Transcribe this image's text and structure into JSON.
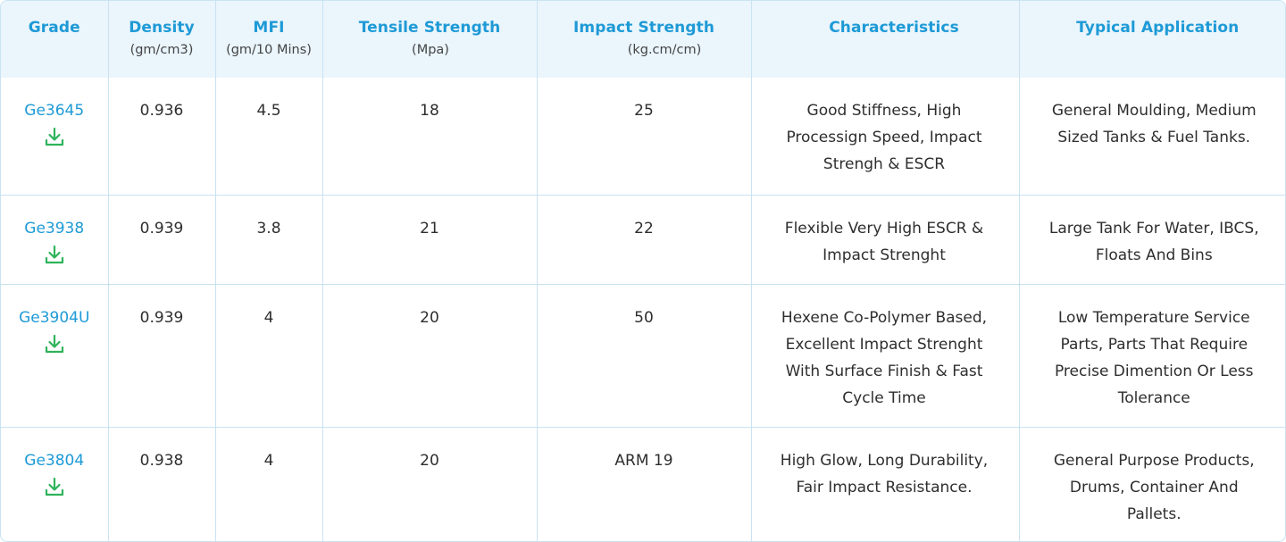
{
  "headers": [
    {
      "title": "Grade",
      "unit": ""
    },
    {
      "title": "Density",
      "unit": "(gm/cm3)"
    },
    {
      "title": "MFI",
      "unit": "(gm/10 Mins)"
    },
    {
      "title": "Tensile Strength",
      "unit": "(Mpa)"
    },
    {
      "title": "Impact Strength",
      "unit": "(kg.cm/cm)"
    },
    {
      "title": "Characteristics",
      "unit": ""
    },
    {
      "title": "Typical Application",
      "unit": ""
    }
  ],
  "rows": [
    {
      "grade": "Ge3645",
      "density": "0.936",
      "mfi": "4.5",
      "tensile": "18",
      "impact": "25",
      "characteristics": "Good Stiffness, High Processign Speed, Impact Strengh & ESCR",
      "application": "General Moulding, Medium Sized Tanks & Fuel Tanks."
    },
    {
      "grade": "Ge3938",
      "density": "0.939",
      "mfi": "3.8",
      "tensile": "21",
      "impact": "22",
      "characteristics": "Flexible Very High ESCR & Impact Strenght",
      "application": "Large Tank For Water, IBCS, Floats And Bins"
    },
    {
      "grade": "Ge3904U",
      "density": "0.939",
      "mfi": "4",
      "tensile": "20",
      "impact": "50",
      "characteristics": "Hexene Co-Polymer Based, Excellent Impact Strenght With Surface Finish & Fast Cycle Time",
      "application": "Low Temperature Service Parts, Parts That Require Precise Dimention Or Less Tolerance"
    },
    {
      "grade": "Ge3804",
      "density": "0.938",
      "mfi": "4",
      "tensile": "20",
      "impact": "ARM 19",
      "characteristics": "High Glow, Long Durability, Fair Impact Resistance.",
      "application": "General Purpose Products, Drums, Container And Pallets."
    }
  ],
  "icons": {
    "download": "download-icon"
  },
  "colors": {
    "header_bg": "#eaf5fc",
    "header_text": "#1e9ad6",
    "grade_link": "#1e9ad6",
    "download_icon": "#2fb35a",
    "border": "#c9e3f2"
  }
}
